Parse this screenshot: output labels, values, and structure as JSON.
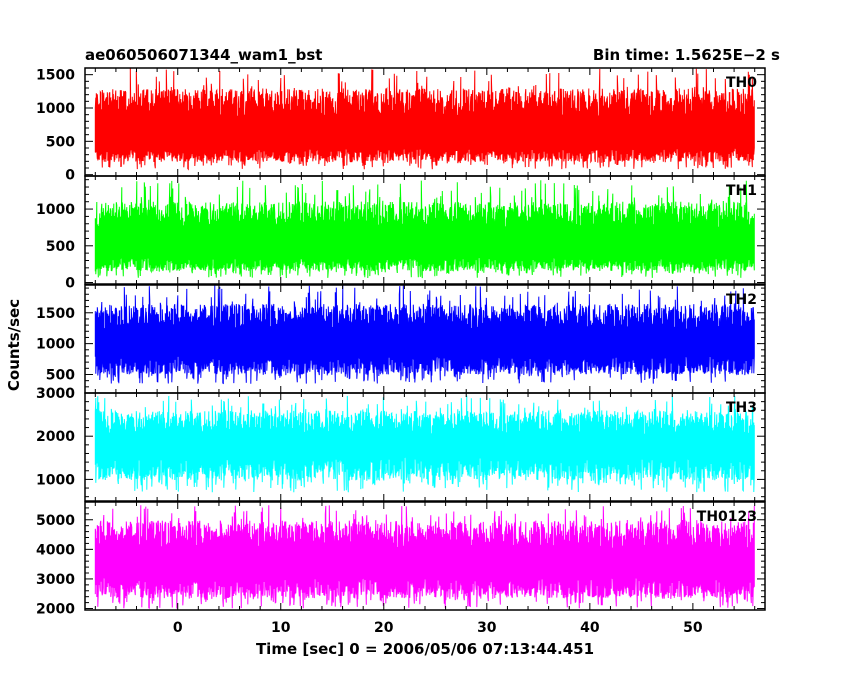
{
  "chart_data": {
    "type": "line",
    "title": "ae060506071344_wam1_bst",
    "subtitle": "Bin time: 1.5625E−2 s",
    "xlabel": "Time [sec] 0 = 2006/05/06 07:13:44.451",
    "ylabel": "Counts/sec",
    "xlim": [
      -9,
      57
    ],
    "x_range_data": [
      -8,
      56
    ],
    "xticks": [
      0,
      10,
      20,
      30,
      40,
      50
    ],
    "grid": false,
    "panels": [
      {
        "name": "TH0",
        "color": "#ff0000",
        "ylim": [
          -20,
          1600
        ],
        "yticks": [
          0,
          500,
          1000,
          1500
        ],
        "band_low": 300,
        "band_high": 1000,
        "spike_low": 80,
        "spike_high": 1600
      },
      {
        "name": "TH1",
        "color": "#00ff00",
        "ylim": [
          -20,
          1450
        ],
        "yticks": [
          0,
          500,
          1000
        ],
        "band_low": 250,
        "band_high": 850,
        "spike_low": 60,
        "spike_high": 1400
      },
      {
        "name": "TH2",
        "color": "#0000ff",
        "ylim": [
          200,
          1950
        ],
        "yticks": [
          500,
          1000,
          1500
        ],
        "band_low": 650,
        "band_high": 1350,
        "spike_low": 350,
        "spike_high": 1950
      },
      {
        "name": "TH3",
        "color": "#00ffff",
        "ylim": [
          500,
          3000
        ],
        "yticks": [
          1000,
          2000,
          3000
        ],
        "band_low": 1250,
        "band_high": 2200,
        "spike_low": 700,
        "spike_high": 2950
      },
      {
        "name": "TH0123",
        "color": "#ff00ff",
        "ylim": [
          1950,
          5600
        ],
        "yticks": [
          2000,
          3000,
          4000,
          5000
        ],
        "band_low": 2700,
        "band_high": 4300,
        "spike_low": 2000,
        "spike_high": 5500
      }
    ]
  }
}
